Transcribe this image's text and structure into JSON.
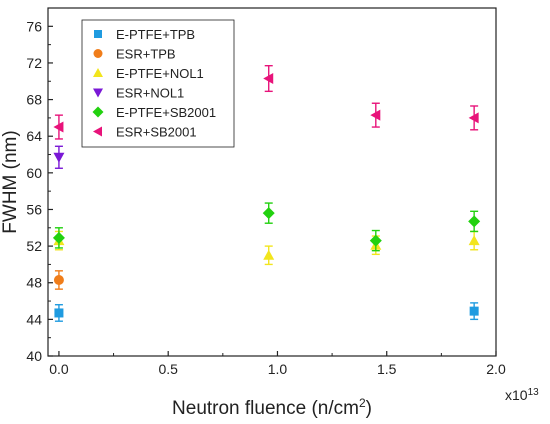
{
  "chart_data": {
    "type": "scatter",
    "xlabel_main": "Neutron fluence (n/cm",
    "xlabel_sup": "2",
    "xlabel_end": ")",
    "ylabel": "FWHM (nm)",
    "x_multiplier": "x10",
    "x_multiplier_exp": "13",
    "xlim": [
      -0.05,
      2.0
    ],
    "ylim": [
      40,
      78
    ],
    "xticks": [
      0.0,
      0.5,
      1.0,
      1.5,
      2.0
    ],
    "xtick_labels": [
      "0.0",
      "0.5",
      "1.0",
      "1.5",
      "2.0"
    ],
    "yticks": [
      40,
      44,
      48,
      52,
      56,
      60,
      64,
      68,
      72,
      76
    ],
    "ytick_labels": [
      "40",
      "44",
      "48",
      "52",
      "56",
      "60",
      "64",
      "68",
      "72",
      "76"
    ],
    "legend_position": "top-left",
    "series": [
      {
        "name": "E-PTFE+TPB",
        "marker": "square",
        "color": "#1f9be0",
        "points": [
          {
            "x": 0.0,
            "y": 44.7,
            "err": 0.9
          },
          {
            "x": 1.9,
            "y": 44.9,
            "err": 0.9
          }
        ]
      },
      {
        "name": "ESR+TPB",
        "marker": "circle",
        "color": "#f07d1a",
        "points": [
          {
            "x": 0.0,
            "y": 48.3,
            "err": 1.0
          }
        ]
      },
      {
        "name": "E-PTFE+NOL1",
        "marker": "triangle-up",
        "color": "#f2e51d",
        "points": [
          {
            "x": 0.0,
            "y": 52.6,
            "err": 1.0
          },
          {
            "x": 0.96,
            "y": 51.0,
            "err": 1.0
          },
          {
            "x": 1.45,
            "y": 52.1,
            "err": 1.0
          },
          {
            "x": 1.9,
            "y": 52.6,
            "err": 1.0
          }
        ]
      },
      {
        "name": "ESR+NOL1",
        "marker": "triangle-down",
        "color": "#7a18d6",
        "points": [
          {
            "x": 0.0,
            "y": 61.7,
            "err": 1.2
          }
        ]
      },
      {
        "name": "E-PTFE+SB2001",
        "marker": "diamond",
        "color": "#22d10f",
        "points": [
          {
            "x": 0.0,
            "y": 52.9,
            "err": 1.1
          },
          {
            "x": 0.96,
            "y": 55.6,
            "err": 1.1
          },
          {
            "x": 1.45,
            "y": 52.6,
            "err": 1.1
          },
          {
            "x": 1.9,
            "y": 54.7,
            "err": 1.1
          }
        ]
      },
      {
        "name": "ESR+SB2001",
        "marker": "triangle-left",
        "color": "#e8137a",
        "points": [
          {
            "x": 0.0,
            "y": 65.0,
            "err": 1.3
          },
          {
            "x": 0.96,
            "y": 70.3,
            "err": 1.4
          },
          {
            "x": 1.45,
            "y": 66.3,
            "err": 1.3
          },
          {
            "x": 1.9,
            "y": 66.0,
            "err": 1.3
          }
        ]
      }
    ]
  }
}
